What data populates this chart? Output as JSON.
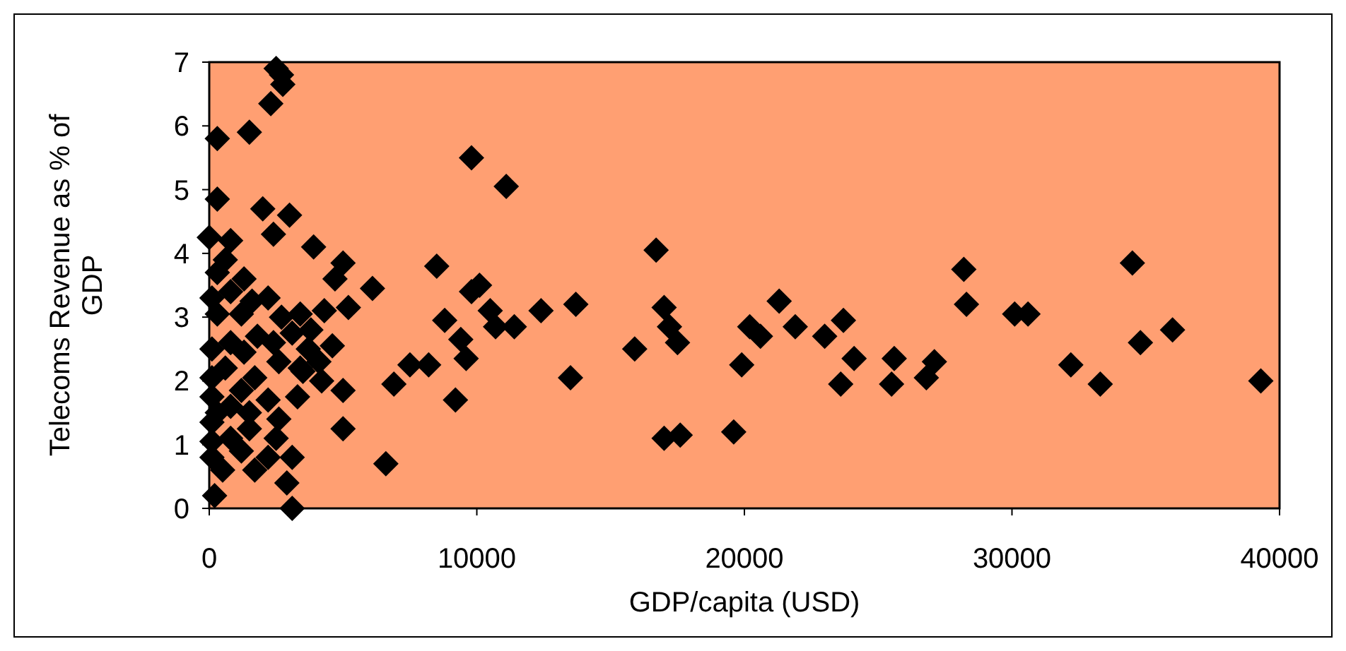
{
  "chart_data": {
    "type": "scatter",
    "xlabel": "GDP/capita (USD)",
    "ylabel": "Telecoms Revenue as % of GDP",
    "xlim": [
      0,
      40000
    ],
    "xticks": [
      0,
      10000,
      20000,
      30000,
      40000
    ],
    "ylim": [
      0,
      7
    ],
    "yticks": [
      0,
      1,
      2,
      3,
      4,
      5,
      6,
      7
    ],
    "grid": false,
    "marker": "diamond",
    "series": [
      {
        "color": "#000000",
        "x": [
          2500,
          2700,
          2750,
          2300,
          1500,
          300,
          300,
          2000,
          3000,
          0,
          800,
          2400,
          3900,
          9800,
          11100,
          16700,
          28200,
          34500,
          8500,
          5000,
          4700,
          6100,
          10100,
          9800,
          13700,
          12400,
          21300,
          17000,
          28300,
          30100,
          30600,
          8800,
          10500,
          10700,
          11400,
          17200,
          17500,
          15900,
          20200,
          20600,
          21900,
          23000,
          23700,
          24100,
          25600,
          27100,
          25500,
          26800,
          32200,
          33300,
          39300,
          34800,
          36000,
          9400,
          9600,
          8200,
          9200,
          13500,
          17000,
          17600,
          19600,
          19900,
          23600,
          600,
          300,
          1300,
          100,
          800,
          1600,
          2200,
          1200,
          300,
          2700,
          3400,
          4300,
          5200,
          3100,
          3800,
          1800,
          2400,
          800,
          100,
          1300,
          3700,
          4600,
          2600,
          3400,
          4100,
          600,
          100,
          1700,
          3500,
          4200,
          5000,
          2200,
          3300,
          1200,
          6900,
          7500,
          5000,
          6600,
          100,
          1500,
          800,
          100,
          2500,
          3100,
          1700,
          2900,
          3100,
          200,
          500,
          2200,
          1200,
          100,
          800,
          300,
          100,
          2600,
          1500
        ],
        "values": [
          6.9,
          6.8,
          6.65,
          6.35,
          5.9,
          5.8,
          4.85,
          4.7,
          4.6,
          4.25,
          4.2,
          4.3,
          4.1,
          5.5,
          5.05,
          4.05,
          3.75,
          3.85,
          3.8,
          3.85,
          3.6,
          3.45,
          3.5,
          3.4,
          3.2,
          3.1,
          3.25,
          3.15,
          3.2,
          3.05,
          3.05,
          2.95,
          3.1,
          2.85,
          2.85,
          2.85,
          2.6,
          2.5,
          2.85,
          2.7,
          2.85,
          2.7,
          2.95,
          2.35,
          2.35,
          2.3,
          1.95,
          2.05,
          2.25,
          1.95,
          2.0,
          2.6,
          2.8,
          2.65,
          2.35,
          2.25,
          1.7,
          2.05,
          1.1,
          1.15,
          1.2,
          2.25,
          1.95,
          3.9,
          3.7,
          3.6,
          3.3,
          3.4,
          3.25,
          3.3,
          3.05,
          3.05,
          3.0,
          3.05,
          3.1,
          3.15,
          2.75,
          2.8,
          2.7,
          2.6,
          2.6,
          2.5,
          2.45,
          2.5,
          2.55,
          2.3,
          2.2,
          2.3,
          2.2,
          2.05,
          2.05,
          2.15,
          2.0,
          1.85,
          1.7,
          1.75,
          1.85,
          1.95,
          2.25,
          1.25,
          0.7,
          1.35,
          1.5,
          1.1,
          1.05,
          1.1,
          0.8,
          0.6,
          0.4,
          0.0,
          0.2,
          0.6,
          0.8,
          0.9,
          0.8,
          1.6,
          1.5,
          1.75,
          1.4,
          1.25
        ]
      }
    ]
  }
}
